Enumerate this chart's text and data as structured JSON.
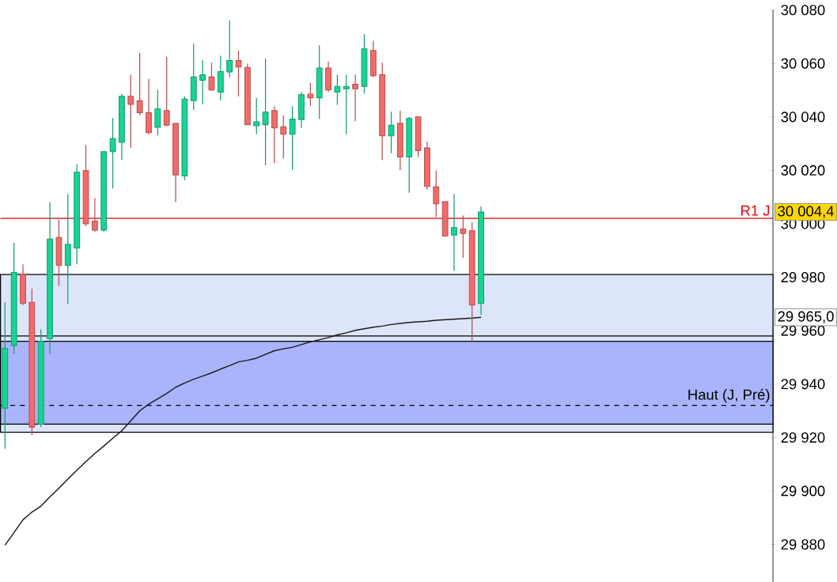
{
  "chart_data": {
    "type": "candlestick",
    "categories": [
      null,
      null,
      null,
      null,
      null,
      null,
      null,
      null,
      null,
      null,
      null,
      null,
      null,
      null,
      null,
      null,
      null,
      null,
      null,
      null,
      null,
      null,
      null,
      null,
      null,
      null,
      null,
      null,
      null,
      null,
      null,
      null,
      null,
      null,
      null,
      null,
      null,
      null,
      null,
      null,
      null,
      null,
      null,
      null,
      null,
      null,
      null,
      null,
      null,
      null,
      null,
      null,
      null,
      null,
      null,
      null,
      null,
      null,
      null,
      null,
      null,
      null,
      null,
      null,
      null,
      null,
      null,
      null,
      null,
      null,
      null,
      null,
      null,
      null,
      null,
      null,
      null,
      null,
      null,
      null,
      null,
      null,
      null,
      null,
      null,
      null
    ],
    "ohlc": [
      [
        29931.0,
        29970.6,
        29915.8,
        29953.4
      ],
      [
        29954.4,
        29992.9,
        29951.3,
        29981.8
      ],
      [
        29981.2,
        29984.8,
        29969.6,
        29970.2
      ],
      [
        29970.6,
        29975.7,
        29920.9,
        29923.9
      ],
      [
        29925.0,
        29960.5,
        29923.9,
        29956.0
      ],
      [
        29957.0,
        30008.1,
        29951.3,
        29994.3
      ],
      [
        29994.9,
        30001.4,
        29976.7,
        29984.4
      ],
      [
        29984.4,
        30011.2,
        29970.0,
        29992.3
      ],
      [
        29990.9,
        30022.3,
        29984.8,
        30019.3
      ],
      [
        30019.9,
        30029.5,
        29999.0,
        30000.0
      ],
      [
        30001.0,
        30009.6,
        29997.0,
        29997.6
      ],
      [
        29997.6,
        30027.0,
        29997.0,
        30027.0
      ],
      [
        30027.0,
        30039.6,
        30013.2,
        30031.9
      ],
      [
        30030.5,
        30048.7,
        30023.8,
        30047.7
      ],
      [
        30047.7,
        30055.8,
        30028.4,
        30044.7
      ],
      [
        30046.1,
        30063.9,
        30040.6,
        30041.6
      ],
      [
        30041.6,
        30054.2,
        30033.5,
        30034.1
      ],
      [
        30036.1,
        30050.1,
        30033.1,
        30043.0
      ],
      [
        30042.4,
        30062.5,
        30036.5,
        30036.9
      ],
      [
        30037.6,
        30037.6,
        30008.1,
        30018.3
      ],
      [
        30017.9,
        30047.7,
        30016.3,
        30046.7
      ],
      [
        30046.1,
        30067.4,
        30042.6,
        30055.0
      ],
      [
        30053.7,
        30061.3,
        30044.7,
        30055.8
      ],
      [
        30055.0,
        30060.3,
        30049.7,
        30050.1
      ],
      [
        30049.3,
        30062.9,
        30046.1,
        30057.0
      ],
      [
        30056.8,
        30076.1,
        30054.8,
        30061.1
      ],
      [
        30061.1,
        30064.9,
        30047.7,
        30058.7
      ],
      [
        30058.5,
        30059.9,
        30037.1,
        30037.1
      ],
      [
        30036.7,
        30047.1,
        30033.5,
        30038.2
      ],
      [
        30037.1,
        30061.9,
        30021.9,
        30041.8
      ],
      [
        30042.4,
        30044.0,
        30022.7,
        30035.9
      ],
      [
        30036.3,
        30040.6,
        30024.4,
        30033.5
      ],
      [
        30033.5,
        30044.0,
        30020.1,
        30039.2
      ],
      [
        30039.0,
        30049.3,
        30035.9,
        30048.3
      ],
      [
        30048.5,
        30052.8,
        30044.2,
        30047.1
      ],
      [
        30047.1,
        30066.8,
        30039.2,
        30058.3
      ],
      [
        30058.3,
        30060.7,
        30049.3,
        30050.1
      ],
      [
        30049.3,
        30055.8,
        30044.5,
        30051.4
      ],
      [
        30050.5,
        30055.8,
        30033.5,
        30051.4
      ],
      [
        30052.2,
        30055.8,
        30038.4,
        30050.5
      ],
      [
        30051.4,
        30071.0,
        30048.7,
        30065.5
      ],
      [
        30064.9,
        30068.6,
        30054.8,
        30055.4
      ],
      [
        30055.8,
        30060.3,
        30023.8,
        30032.9
      ],
      [
        30032.9,
        30042.0,
        30026.4,
        30036.9
      ],
      [
        30037.6,
        30042.4,
        30020.1,
        30025.0
      ],
      [
        30025.0,
        30040.0,
        30011.6,
        30039.4
      ],
      [
        30040.0,
        30040.0,
        30025.0,
        30027.4
      ],
      [
        30028.4,
        30030.7,
        30012.8,
        30014.0
      ],
      [
        30013.8,
        30019.9,
        30002.5,
        30007.5
      ],
      [
        30008.3,
        30008.3,
        29995.4,
        29995.4
      ],
      [
        29995.8,
        30011.2,
        29982.4,
        29998.6
      ],
      [
        29998.0,
        30003.1,
        29987.2,
        29996.4
      ],
      [
        29997.4,
        30000.6,
        29956.0,
        29969.6
      ],
      [
        29970.2,
        30006.5,
        29965.9,
        30004.4
      ],
      null,
      null,
      null,
      null,
      null,
      null,
      null,
      null,
      null,
      null,
      null,
      null,
      null,
      null,
      null,
      null,
      null,
      null,
      null,
      null,
      null,
      null,
      null,
      null,
      null,
      null,
      null,
      null,
      null,
      null,
      null,
      null
    ],
    "colors": [
      "#19d393",
      "#19d393",
      "#f26b6b",
      "#f26b6b",
      "#19d393",
      "#19d393",
      "#f26b6b",
      "#19d393",
      "#19d393",
      "#f26b6b",
      "#f26b6b",
      "#19d393",
      "#19d393",
      "#19d393",
      "#f26b6b",
      "#f26b6b",
      "#f26b6b",
      "#19d393",
      "#f26b6b",
      "#f26b6b",
      "#19d393",
      "#19d393",
      "#19d393",
      "#f26b6b",
      "#19d393",
      "#19d393",
      "#f26b6b",
      "#f26b6b",
      "#19d393",
      "#19d393",
      "#f26b6b",
      "#f26b6b",
      "#19d393",
      "#19d393",
      "#f26b6b",
      "#19d393",
      "#f26b6b",
      "#19d393",
      "#19d393",
      "#f26b6b",
      "#19d393",
      "#f26b6b",
      "#f26b6b",
      "#19d393",
      "#f26b6b",
      "#19d393",
      "#f26b6b",
      "#f26b6b",
      "#f26b6b",
      "#f26b6b",
      "#19d393",
      "#f26b6b",
      "#f26b6b",
      "#19d393",
      null,
      null,
      null,
      null,
      null,
      null,
      null,
      null,
      null,
      null,
      null,
      null,
      null,
      null,
      null,
      null,
      null,
      null,
      null,
      null,
      null,
      null,
      null,
      null,
      null,
      null,
      null,
      null,
      null,
      null,
      null,
      null
    ],
    "series": [
      {
        "type": "line",
        "color": "#1a1a1a",
        "values": [
          29879.7,
          29884.4,
          29889.2,
          29892.1,
          29894.3,
          29897.8,
          29901.0,
          29904.5,
          29907.7,
          29911.0,
          29914.0,
          29916.8,
          29919.7,
          29922.5,
          29926.2,
          29930.0,
          29932.5,
          29934.5,
          29936.5,
          29938.8,
          29940.4,
          29941.8,
          29943.0,
          29944.2,
          29945.6,
          29946.9,
          29948.3,
          29948.9,
          29949.7,
          29951.1,
          29952.5,
          29953.2,
          29953.8,
          29954.8,
          29955.8,
          29956.6,
          29957.4,
          29958.4,
          29959.2,
          29960.1,
          29960.7,
          29961.3,
          29961.7,
          29962.3,
          29962.7,
          29963.1,
          29963.3,
          29963.5,
          29963.9,
          29964.1,
          29964.3,
          29964.5,
          29964.7,
          29965.0,
          null,
          null,
          null,
          null,
          null,
          null,
          null,
          null,
          null,
          null,
          null,
          null,
          null,
          null,
          null,
          null,
          null,
          null,
          null,
          null,
          null,
          null,
          null,
          null,
          null,
          null,
          null,
          null,
          null,
          null,
          null,
          null
        ]
      }
    ],
    "ylim": [
      29866,
      30080
    ],
    "yticks": [
      {
        "value": 29880,
        "label": "29 880"
      },
      {
        "value": 29900,
        "label": "29 900"
      },
      {
        "value": 29920,
        "label": "29 920"
      },
      {
        "value": 29940,
        "label": "29 940"
      },
      {
        "value": 29960,
        "label": "29 960"
      },
      {
        "value": 29980,
        "label": "29 980"
      },
      {
        "value": 30000,
        "label": "30 000"
      },
      {
        "value": 30020,
        "label": "30 020"
      },
      {
        "value": 30040,
        "label": "30 040"
      },
      {
        "value": 30060,
        "label": "30 060"
      },
      {
        "value": 30080,
        "label": "30 080"
      }
    ],
    "tick_labels": "y",
    "bands": [
      {
        "axis": "y",
        "from": 29922,
        "to": 29981,
        "color": "#dde5fb"
      },
      {
        "axis": "y",
        "from": 29925,
        "to": 29956,
        "color": "#aab4fd"
      }
    ],
    "ref_lines": [
      {
        "axis": "y",
        "value": 30002,
        "label": "R1 J",
        "color": "#e8000b",
        "line_style": "solid"
      },
      {
        "axis": "y",
        "value": 29958,
        "color": "#000000",
        "line_style": "solid"
      },
      {
        "axis": "y",
        "value": 29932,
        "label": "Haut (J, Pré)",
        "color": "#000000",
        "line_style": "dashed"
      }
    ],
    "annotations": [
      "30 004,4",
      "29 965,0"
    ]
  }
}
